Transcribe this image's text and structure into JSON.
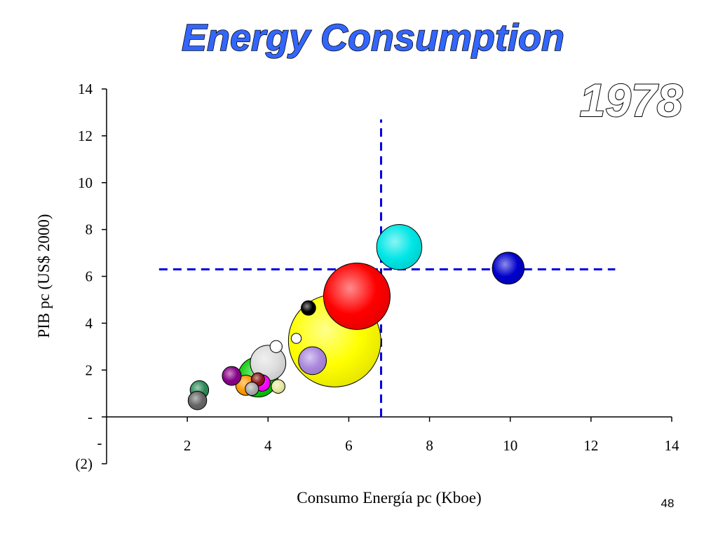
{
  "slide": {
    "page_number": "48"
  },
  "chart_data": {
    "type": "scatter",
    "title": "Energy Consumption",
    "subtitle": "1978",
    "xlabel": "Consumo Energía pc (Kboe)",
    "ylabel": "PIB pc (US$ 2000)",
    "xlim": [
      0,
      14
    ],
    "ylim": [
      -2,
      14
    ],
    "x_ticks": [
      "2",
      "4",
      "6",
      "8",
      "10",
      "12",
      "14"
    ],
    "y_ticks": [
      {
        "value": 14,
        "label": "14"
      },
      {
        "value": 12,
        "label": "12"
      },
      {
        "value": 10,
        "label": "10"
      },
      {
        "value": 8,
        "label": "8"
      },
      {
        "value": 6,
        "label": "6"
      },
      {
        "value": 4,
        "label": "4"
      },
      {
        "value": 2,
        "label": "2"
      },
      {
        "value": 0,
        "label": "-"
      },
      {
        "value": -2,
        "label": "(2)"
      }
    ],
    "x_tick_values": [
      2,
      4,
      6,
      8,
      10,
      12,
      14
    ],
    "x_zero_label": "-",
    "grid": false,
    "reference_lines": [
      {
        "orientation": "vertical",
        "x": 6.8,
        "y_from": 0,
        "y_to": 12.7,
        "color": "#0000dd"
      },
      {
        "orientation": "horizontal",
        "y": 6.3,
        "x_from": 1.3,
        "x_to": 12.6,
        "color": "#0000dd"
      }
    ],
    "bubbles": [
      {
        "x": 5.65,
        "y": 3.25,
        "size": 2.29,
        "color": "#ffff00"
      },
      {
        "x": 6.2,
        "y": 5.15,
        "size": 1.65,
        "color": "#ff0000"
      },
      {
        "x": 7.25,
        "y": 7.25,
        "size": 1.12,
        "color": "#00e6e6"
      },
      {
        "x": 9.95,
        "y": 6.35,
        "size": 0.79,
        "color": "#0000cc"
      },
      {
        "x": 5.0,
        "y": 4.65,
        "size": 0.36,
        "color": "#000000"
      },
      {
        "x": 4.7,
        "y": 3.35,
        "size": 0.25,
        "color": "#ffffff"
      },
      {
        "x": 5.1,
        "y": 2.4,
        "size": 0.69,
        "color": "#aa88dd"
      },
      {
        "x": 3.75,
        "y": 1.7,
        "size": 0.99,
        "color": "#00cc00"
      },
      {
        "x": 3.45,
        "y": 1.35,
        "size": 0.5,
        "color": "#ff9900"
      },
      {
        "x": 3.1,
        "y": 1.75,
        "size": 0.47,
        "color": "#880088"
      },
      {
        "x": 3.85,
        "y": 1.45,
        "size": 0.41,
        "color": "#ff00ff"
      },
      {
        "x": 3.75,
        "y": 1.6,
        "size": 0.33,
        "color": "#8b1a1a"
      },
      {
        "x": 4.2,
        "y": 3.0,
        "size": 0.3,
        "color": "#ffffff"
      },
      {
        "x": 3.6,
        "y": 1.2,
        "size": 0.33,
        "color": "#aaaaaa"
      },
      {
        "x": 4.25,
        "y": 1.3,
        "size": 0.34,
        "color": "#e8e8a0"
      },
      {
        "x": 4.0,
        "y": 2.3,
        "size": 0.88,
        "color": "#dddddd"
      },
      {
        "x": 2.3,
        "y": 1.15,
        "size": 0.46,
        "color": "#2e8b57"
      },
      {
        "x": 2.25,
        "y": 0.7,
        "size": 0.46,
        "color": "#666666"
      }
    ]
  }
}
